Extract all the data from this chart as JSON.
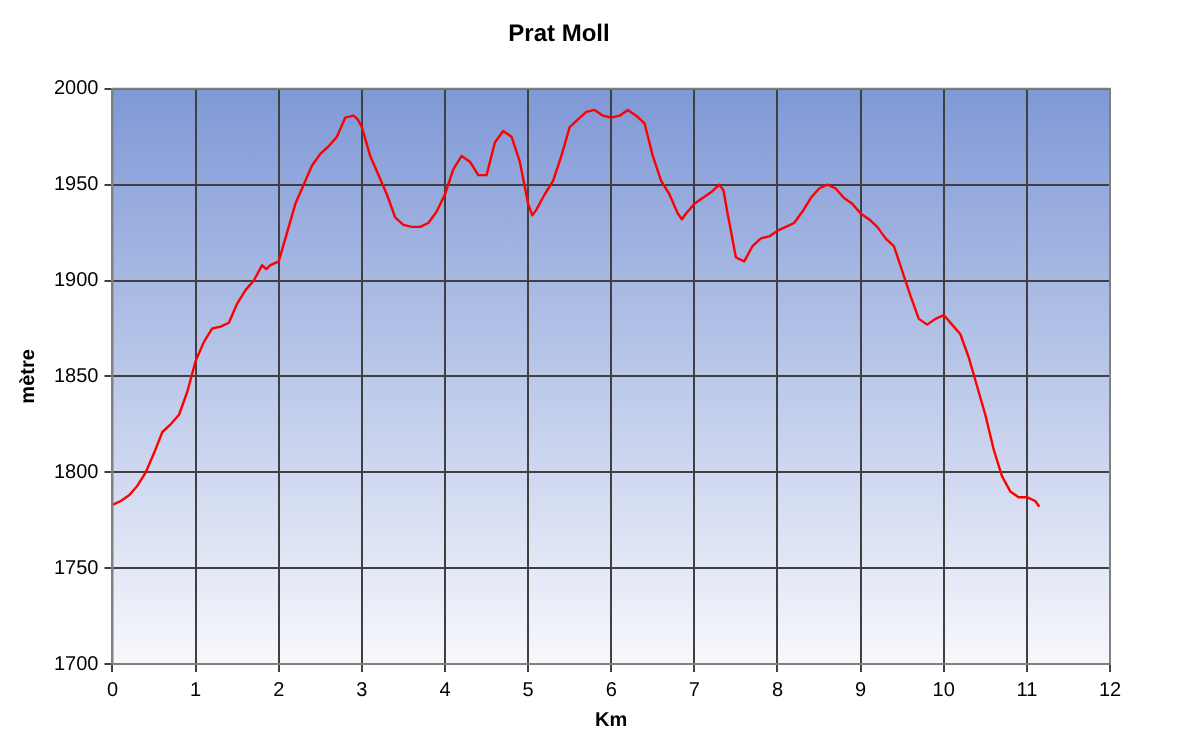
{
  "chart_data": {
    "type": "line",
    "title": "Prat Moll",
    "xlabel": "Km",
    "ylabel": "mètre",
    "x": [
      0,
      0.1,
      0.2,
      0.3,
      0.4,
      0.5,
      0.6,
      0.7,
      0.8,
      0.9,
      1.0,
      1.1,
      1.2,
      1.3,
      1.4,
      1.5,
      1.6,
      1.7,
      1.8,
      1.85,
      1.9,
      2.0,
      2.1,
      2.2,
      2.3,
      2.4,
      2.5,
      2.6,
      2.7,
      2.8,
      2.9,
      2.95,
      3.0,
      3.1,
      3.2,
      3.3,
      3.4,
      3.5,
      3.6,
      3.7,
      3.8,
      3.9,
      4.0,
      4.1,
      4.2,
      4.3,
      4.4,
      4.5,
      4.6,
      4.7,
      4.8,
      4.9,
      5.0,
      5.05,
      5.1,
      5.2,
      5.3,
      5.4,
      5.5,
      5.6,
      5.7,
      5.8,
      5.9,
      6.0,
      6.1,
      6.2,
      6.3,
      6.4,
      6.5,
      6.6,
      6.7,
      6.8,
      6.85,
      6.9,
      7.0,
      7.1,
      7.2,
      7.3,
      7.35,
      7.4,
      7.5,
      7.6,
      7.7,
      7.8,
      7.9,
      8.0,
      8.1,
      8.2,
      8.3,
      8.4,
      8.5,
      8.6,
      8.7,
      8.8,
      8.9,
      9.0,
      9.1,
      9.2,
      9.3,
      9.4,
      9.5,
      9.6,
      9.7,
      9.8,
      9.9,
      10.0,
      10.1,
      10.2,
      10.3,
      10.4,
      10.5,
      10.6,
      10.7,
      10.8,
      10.9,
      11.0,
      11.1,
      11.15
    ],
    "series": [
      {
        "color": "#ff0000",
        "values": [
          1783,
          1785,
          1788,
          1793,
          1800,
          1810,
          1821,
          1825,
          1830,
          1842,
          1858,
          1868,
          1875,
          1876,
          1878,
          1888,
          1895,
          1900,
          1908,
          1906,
          1908,
          1910,
          1925,
          1940,
          1950,
          1960,
          1966,
          1970,
          1975,
          1985,
          1986,
          1984,
          1980,
          1965,
          1955,
          1945,
          1933,
          1929,
          1928,
          1928,
          1930,
          1936,
          1945,
          1958,
          1965,
          1962,
          1955,
          1955,
          1972,
          1978,
          1975,
          1962,
          1940,
          1934,
          1937,
          1945,
          1952,
          1965,
          1980,
          1984,
          1988,
          1989,
          1986,
          1985,
          1986,
          1989,
          1986,
          1982,
          1965,
          1952,
          1945,
          1935,
          1932,
          1935,
          1940,
          1943,
          1946,
          1950,
          1947,
          1935,
          1912,
          1910,
          1918,
          1922,
          1923,
          1926,
          1928,
          1930,
          1936,
          1943,
          1948,
          1950,
          1948,
          1943,
          1940,
          1935,
          1932,
          1928,
          1922,
          1918,
          1905,
          1892,
          1880,
          1877,
          1880,
          1882,
          1877,
          1872,
          1860,
          1845,
          1830,
          1812,
          1798,
          1790,
          1787,
          1787,
          1785,
          1782
        ]
      }
    ],
    "xlim": [
      0,
      12
    ],
    "xticks": [
      0,
      1,
      2,
      3,
      4,
      5,
      6,
      7,
      8,
      9,
      10,
      11,
      12
    ],
    "ylim": [
      1700,
      2000
    ],
    "yticks": [
      1700,
      1750,
      1800,
      1850,
      1900,
      1950,
      2000
    ],
    "grid": true,
    "legend": false,
    "marker": "none",
    "line_style": "solid"
  }
}
